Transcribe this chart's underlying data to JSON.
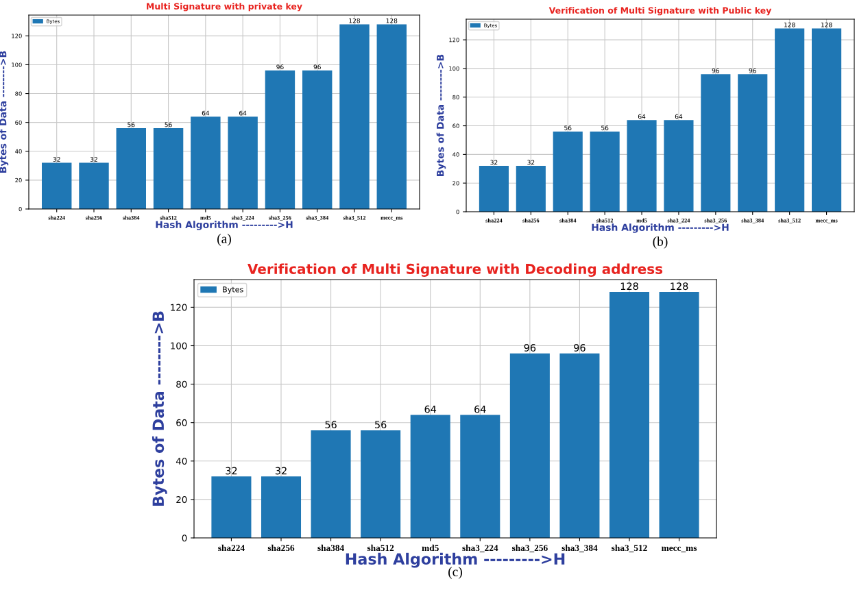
{
  "chart_data": [
    {
      "type": "bar",
      "title": "Multi Signature with private key",
      "xlabel": "Hash Algorithm --------->H",
      "ylabel": "Bytes of Data -------->B",
      "categories": [
        "sha224",
        "sha256",
        "sha384",
        "sha512",
        "md5",
        "sha3_224",
        "sha3_256",
        "sha3_384",
        "sha3_512",
        "mecc_ms"
      ],
      "series": [
        {
          "name": "Bytes",
          "color": "#1f77b4",
          "values": [
            32,
            32,
            56,
            56,
            64,
            64,
            96,
            96,
            128,
            128
          ]
        }
      ],
      "ylim": [
        0,
        134.4
      ],
      "yticks": [
        0,
        20,
        40,
        60,
        80,
        100,
        120
      ],
      "grid": true,
      "legend": "top left",
      "data_labels": true,
      "annotations": [
        "(a)"
      ]
    },
    {
      "type": "bar",
      "title": "Verification of Multi Signature with Public key",
      "xlabel": "Hash Algorithm --------->H",
      "ylabel": "Bytes of Data -------->B",
      "categories": [
        "sha224",
        "sha256",
        "sha384",
        "sha512",
        "md5",
        "sha3_224",
        "sha3_256",
        "sha3_384",
        "sha3_512",
        "mecc_ms"
      ],
      "series": [
        {
          "name": "Bytes",
          "color": "#1f77b4",
          "values": [
            32,
            32,
            56,
            56,
            64,
            64,
            96,
            96,
            128,
            128
          ]
        }
      ],
      "ylim": [
        0,
        134.4
      ],
      "yticks": [
        0,
        20,
        40,
        60,
        80,
        100,
        120
      ],
      "grid": true,
      "legend": "top left",
      "data_labels": true,
      "annotations": [
        "(b)"
      ]
    },
    {
      "type": "bar",
      "title": "Verification of Multi Signature with Decoding address",
      "xlabel": "Hash Algorithm --------->H",
      "ylabel": "Bytes of Data -------->B",
      "categories": [
        "sha224",
        "sha256",
        "sha384",
        "sha512",
        "md5",
        "sha3_224",
        "sha3_256",
        "sha3_384",
        "sha3_512",
        "mecc_ms"
      ],
      "series": [
        {
          "name": "Bytes",
          "color": "#1f77b4",
          "values": [
            32,
            32,
            56,
            56,
            64,
            64,
            96,
            96,
            128,
            128
          ]
        }
      ],
      "ylim": [
        0,
        134.4
      ],
      "yticks": [
        0,
        20,
        40,
        60,
        80,
        100,
        120
      ],
      "grid": true,
      "legend": "top left",
      "data_labels": true,
      "annotations": [
        "(c)"
      ]
    }
  ]
}
